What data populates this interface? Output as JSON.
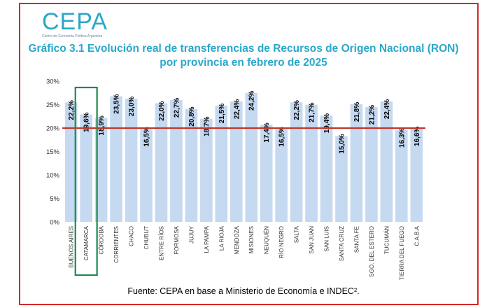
{
  "header": {
    "logo_text": "CEPA",
    "logo_subtitle": "Centro de Economía Política Argentina",
    "title": "Gráfico 3.1 Evolución real de transferencias de Recursos de Origen Nacional (RON) por provincia en febrero de 2025"
  },
  "footer": {
    "source": "Fuente: CEPA en base a Ministerio de Economía e INDEC²."
  },
  "colors": {
    "bar": "#c5d9f1",
    "bar_label": "#000000",
    "reference_line": "#c0392b",
    "highlight_box": "#1e8a4c",
    "title": "#2aa7c9"
  },
  "chart_data": {
    "type": "bar",
    "categories": [
      "BUENOS AIRES",
      "CATAMARCA",
      "CÓRDOBA",
      "CORRIENTES",
      "CHACO",
      "CHUBUT",
      "ENTRE RÍOS",
      "FORMOSA",
      "JUJUY",
      "LA PAMPA",
      "LA RIOJA",
      "MENDOZA",
      "MISIONES",
      "NEUQUÉN",
      "RÍO NEGRO",
      "SALTA",
      "SAN JUAN",
      "SAN LUIS",
      "SANTA CRUZ",
      "SANTA FE",
      "SGO. DEL ESTERO",
      "TUCUMÁN",
      "TIERRA DEL FUEGO",
      "C.A.B.A"
    ],
    "values": [
      22.2,
      19.6,
      18.9,
      23.5,
      23.0,
      16.5,
      22.0,
      22.7,
      20.8,
      18.7,
      21.5,
      22.4,
      24.2,
      17.4,
      16.5,
      22.2,
      21.7,
      19.4,
      15.0,
      21.8,
      21.2,
      22.4,
      16.3,
      16.6
    ],
    "value_labels": [
      "22,2%",
      "19,6%",
      "18,9%",
      "23,5%",
      "23,0%",
      "16,5%",
      "22,0%",
      "22,7%",
      "20,8%",
      "18,7%",
      "21,5%",
      "22,4%",
      "24,2%",
      "17,4%",
      "16,5%",
      "22,2%",
      "21,7%",
      "19,4%",
      "15,0%",
      "21,8%",
      "21,2%",
      "22,4%",
      "16,3%",
      "16,6%"
    ],
    "y_ticks": [
      "0%",
      "5%",
      "10%",
      "15%",
      "20%",
      "25%",
      "30%"
    ],
    "y_tick_values": [
      0,
      5,
      10,
      15,
      20,
      25,
      30
    ],
    "ylim": [
      0,
      30
    ],
    "reference_line": 20,
    "highlighted_category": "CATAMARCA",
    "grid": false,
    "legend": "none"
  }
}
